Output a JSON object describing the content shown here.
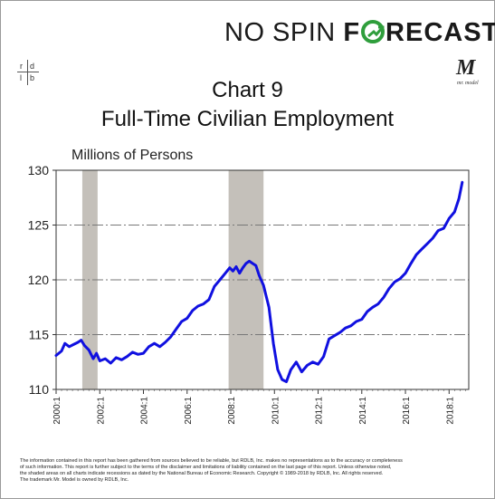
{
  "brand": {
    "no_spin": "NO SPIN",
    "forecast_f": "F",
    "forecast_rest": "RECAST"
  },
  "logo_left": {
    "tl": "r",
    "tr": "d",
    "bl": "l",
    "br": "b"
  },
  "logo_right": {
    "letter": "M",
    "caption": "mr. model"
  },
  "title_line1": "Chart 9",
  "title_line2": "Full-Time Civilian Employment",
  "units": "Millions of Persons",
  "footer": [
    "The information contained in this report has been gathered from sources believed to be reliable, but RDLB, Inc. makes no representations as to the accuracy or completeness",
    "of such information. This report is further subject to the terms of the disclaimer and limitations of liability contained on the last page of this report. Unless otherwise noted,",
    "the shaded areas on all charts indicate recessions as dated by the National Bureau of Economic Research. Copyright © 1989-2018 by RDLB, Inc. All rights reserved.",
    "The trademark Mr. Model is owned by RDLB, Inc."
  ],
  "colors": {
    "line": "#1010e0",
    "recession": "#c4c0ba",
    "grid": "#777777",
    "brand_green": "#2f9e3c"
  },
  "chart_data": {
    "type": "line",
    "title": "Full-Time Civilian Employment",
    "ylabel": "Millions of Persons",
    "ylim": [
      110,
      130
    ],
    "yticks": [
      110,
      115,
      120,
      125,
      130
    ],
    "xlim": [
      2000.0,
      2018.9
    ],
    "xticks": [
      "2000:1",
      "2002:1",
      "2004:1",
      "2006:1",
      "2008:1",
      "2010:1",
      "2012:1",
      "2014:1",
      "2016:1",
      "2018:1"
    ],
    "grid": "horizontal dashed",
    "recessions": [
      [
        2001.2,
        2001.9
      ],
      [
        2007.9,
        2009.5
      ]
    ],
    "series": [
      {
        "x": [
          2000.0,
          2000.25,
          2000.4,
          2000.6,
          2000.8,
          2001.0,
          2001.15,
          2001.3,
          2001.5,
          2001.7,
          2001.85,
          2002.0,
          2002.25,
          2002.5,
          2002.75,
          2003.0,
          2003.25,
          2003.5,
          2003.75,
          2004.0,
          2004.25,
          2004.5,
          2004.75,
          2005.0,
          2005.25,
          2005.5,
          2005.75,
          2006.0,
          2006.25,
          2006.5,
          2006.75,
          2007.0,
          2007.25,
          2007.5,
          2007.75,
          2007.95,
          2008.1,
          2008.25,
          2008.4,
          2008.55,
          2008.7,
          2008.85,
          2009.0,
          2009.15,
          2009.3,
          2009.5,
          2009.75,
          2009.95,
          2010.15,
          2010.35,
          2010.55,
          2010.75,
          2011.0,
          2011.25,
          2011.5,
          2011.75,
          2012.0,
          2012.25,
          2012.5,
          2012.75,
          2013.0,
          2013.25,
          2013.5,
          2013.75,
          2014.0,
          2014.25,
          2014.5,
          2014.75,
          2015.0,
          2015.25,
          2015.5,
          2015.75,
          2016.0,
          2016.25,
          2016.5,
          2016.75,
          2017.0,
          2017.25,
          2017.5,
          2017.75,
          2018.0,
          2018.25,
          2018.45,
          2018.6
        ],
        "values": [
          113.1,
          113.5,
          114.2,
          113.9,
          114.1,
          114.3,
          114.5,
          114.0,
          113.6,
          112.8,
          113.3,
          112.6,
          112.8,
          112.4,
          112.9,
          112.7,
          113.0,
          113.4,
          113.2,
          113.3,
          113.9,
          114.2,
          113.9,
          114.3,
          114.8,
          115.5,
          116.2,
          116.5,
          117.2,
          117.6,
          117.8,
          118.2,
          119.4,
          120.0,
          120.6,
          121.1,
          120.8,
          121.2,
          120.6,
          121.1,
          121.5,
          121.7,
          121.5,
          121.3,
          120.4,
          119.5,
          117.5,
          114.2,
          111.8,
          110.9,
          110.7,
          111.8,
          112.5,
          111.6,
          112.2,
          112.5,
          112.3,
          113.0,
          114.6,
          114.9,
          115.2,
          115.6,
          115.8,
          116.2,
          116.4,
          117.1,
          117.5,
          117.8,
          118.4,
          119.2,
          119.8,
          120.1,
          120.6,
          121.5,
          122.3,
          122.8,
          123.3,
          123.8,
          124.5,
          124.7,
          125.6,
          126.2,
          127.4,
          128.9
        ]
      }
    ]
  }
}
